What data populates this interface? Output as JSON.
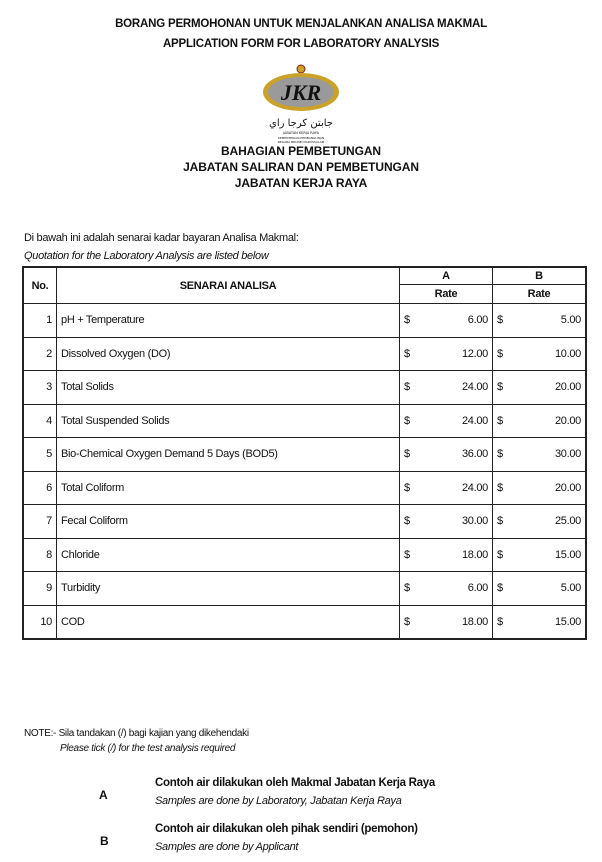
{
  "header": {
    "title_ms": "BORANG PERMOHONAN UNTUK MENJALANKAN ANALISA MAKMAL",
    "title_en": "APPLICATION FORM FOR LABORATORY ANALYSIS",
    "logo": {
      "text": "JKR",
      "arabic": "جابتن كرجا راي",
      "caption_1": "JABATAN KERJA RAYA",
      "caption_2": "KEMENTERIAN PEMBANGUNAN",
      "caption_3": "NEGARA BRUNEI DARUSSALAM",
      "colors": {
        "gold": "#c9a227",
        "grey": "#9a9a9a"
      }
    },
    "division": "BAHAGIAN PEMBETUNGAN",
    "department": "JABATAN SALIRAN DAN PEMBETUNGAN",
    "ministry": "JABATAN KERJA RAYA"
  },
  "intro": {
    "ms": "Di bawah ini adalah senarai kadar bayaran Analisa Makmal:",
    "en": "Quotation for the Laboratory Analysis are listed below"
  },
  "table": {
    "col_no": "No.",
    "col_name": "SENARAI ANALISA",
    "col_a": "A",
    "col_b": "B",
    "rate_label": "Rate",
    "currency": "$",
    "rows": [
      {
        "no": "1",
        "name": "pH + Temperature",
        "a": "6.00",
        "b": "5.00"
      },
      {
        "no": "2",
        "name": "Dissolved Oxygen (DO)",
        "a": "12.00",
        "b": "10.00"
      },
      {
        "no": "3",
        "name": "Total Solids",
        "a": "24.00",
        "b": "20.00"
      },
      {
        "no": "4",
        "name": "Total Suspended Solids",
        "a": "24.00",
        "b": "20.00"
      },
      {
        "no": "5",
        "name": "Bio-Chemical Oxygen Demand 5 Days (BOD5)",
        "a": "36.00",
        "b": "30.00"
      },
      {
        "no": "6",
        "name": "Total Coliform",
        "a": "24.00",
        "b": "20.00"
      },
      {
        "no": "7",
        "name": "Fecal Coliform",
        "a": "30.00",
        "b": "25.00"
      },
      {
        "no": "8",
        "name": "Chloride",
        "a": "18.00",
        "b": "15.00"
      },
      {
        "no": "9",
        "name": "Turbidity",
        "a": "6.00",
        "b": "5.00"
      },
      {
        "no": "10",
        "name": "COD",
        "a": "18.00",
        "b": "15.00"
      }
    ]
  },
  "note": {
    "ms": "NOTE:- Sila tandakan (/) bagi kajian yang dikehendaki",
    "en": "Please tick (/) for the test analysis required"
  },
  "options": [
    {
      "letter": "A",
      "ms": "Contoh air dilakukan oleh Makmal Jabatan Kerja Raya",
      "en": "Samples are done by Laboratory, Jabatan Kerja Raya"
    },
    {
      "letter": "B",
      "ms": "Contoh air dilakukan oleh pihak sendiri (pemohon)",
      "en": "Samples are done by Applicant"
    }
  ]
}
